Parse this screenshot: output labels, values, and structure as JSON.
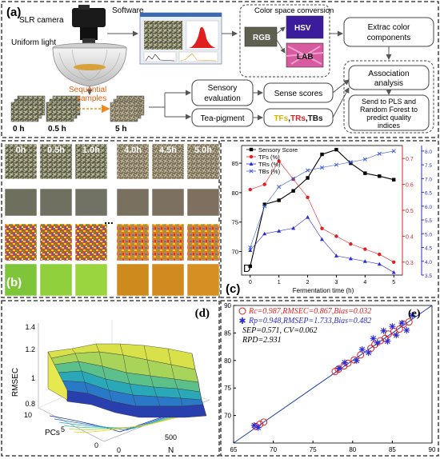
{
  "panel_a": {
    "label": "(a)",
    "camera": "SLR camera",
    "light": "Uniform light",
    "software": "Software",
    "color_space": "Color space conversion",
    "rgb": "RGB",
    "hsv": "HSV",
    "lab": "LAB",
    "extract": [
      "Extrac color",
      "components"
    ],
    "sequential": [
      "Sequential",
      "samples"
    ],
    "times": [
      "0 h",
      "0.5 h",
      "5 h"
    ],
    "sensory_eval": [
      "Sensory",
      "evaluation"
    ],
    "sense_scores": "Sense scores",
    "tea_pigment": "Tea-pigment",
    "pigments": [
      "TFs",
      ",",
      "TRs",
      ",",
      "TBs"
    ],
    "association": [
      "Association",
      "analysis"
    ],
    "send": [
      "Send to PLS and",
      "Random Forest to",
      "predict quality",
      "indices"
    ]
  },
  "panel_b": {
    "label": "(b)",
    "times": [
      "0h",
      "0.5h",
      "1.0h",
      "4.0h",
      "4.5h",
      "5.0h"
    ],
    "ellipsis": "..."
  },
  "panel_c": {
    "label": "(c)",
    "panel_letter": "D",
    "chart_data": {
      "type": "line",
      "xlabel": "Fermentation time (h)",
      "x": [
        0,
        0.5,
        1,
        1.5,
        2,
        2.5,
        3,
        3.5,
        4,
        4.5,
        5
      ],
      "xticks": [
        0,
        1,
        2,
        3,
        4,
        5
      ],
      "left_yticks": [
        70,
        75,
        80,
        85
      ],
      "left_ylim": [
        66,
        88
      ],
      "red_yticks": [
        0.3,
        0.4,
        0.5,
        0.6,
        0.7
      ],
      "red_ylim": [
        0.25,
        0.75
      ],
      "blue_yticks": [
        3.5,
        4.0,
        4.5,
        5.0,
        5.5,
        6.0,
        6.5,
        7.0,
        7.5,
        8.0
      ],
      "blue_ylim": [
        3.5,
        8.2
      ],
      "legend_position": "top-left",
      "series": [
        {
          "name": "Sensory Score",
          "color": "#000000",
          "axis": "left",
          "marker": "square",
          "values": [
            67.5,
            78.0,
            78.7,
            80.3,
            82.5,
            86.5,
            87.3,
            85.0,
            83.3,
            82.8,
            82.2
          ]
        },
        {
          "name": "TFs (%)",
          "color": "#e02020",
          "axis": "red",
          "marker": "circle",
          "values": [
            0.58,
            0.6,
            0.69,
            0.62,
            0.55,
            0.43,
            0.4,
            0.37,
            0.35,
            0.33,
            0.3
          ]
        },
        {
          "name": "TRs (%)",
          "color": "#2b2bd6",
          "axis": "blue",
          "marker": "triangle",
          "values": [
            4.4,
            5.0,
            5.1,
            5.2,
            5.6,
            4.8,
            4.2,
            4.1,
            4.0,
            3.9,
            3.6
          ]
        },
        {
          "name": "TBs (%)",
          "color": "#3b5bdb",
          "axis": "blue",
          "marker": "x",
          "values": [
            4.5,
            6.0,
            6.7,
            7.0,
            7.3,
            7.4,
            7.5,
            7.6,
            7.7,
            7.9,
            8.0
          ]
        }
      ]
    }
  },
  "panel_d": {
    "label": "(d)",
    "zlabel": "RMSEC",
    "ylabel": "PCs",
    "xlabel": "N",
    "zticks": [
      "0.8",
      "1",
      "1.2",
      "1.4"
    ],
    "yticks": [
      "0",
      "5",
      "10"
    ],
    "xticks": [
      "0",
      "500"
    ]
  },
  "panel_e": {
    "label": "(e)",
    "chart_data": {
      "type": "scatter",
      "xlim": [
        65,
        90
      ],
      "ylim": [
        65,
        90
      ],
      "xticks": [
        65,
        70,
        75,
        80,
        85,
        90
      ],
      "yticks": [
        70,
        75,
        80,
        85,
        90
      ],
      "annotations": [
        "Rc=0.987,RMSEC=0.867,Bias=0.032",
        "Rp=0.948,RMSEP=1.733,Bias=0.482",
        "SEP=0.571, CV=0.062",
        "RPD=2.931"
      ],
      "calibration": {
        "marker": "circle",
        "color": "#e02020",
        "x": [
          67.8,
          68.3,
          68.8,
          77.8,
          78.2,
          78.9,
          79.4,
          80.2,
          81.0,
          82.3,
          82.8,
          83.5,
          84.1,
          84.5,
          85.2,
          85.9,
          86.4,
          87.1
        ],
        "y": [
          68.0,
          68.4,
          68.8,
          78.0,
          78.4,
          79.0,
          79.5,
          80.1,
          81.0,
          82.2,
          82.9,
          83.6,
          84.0,
          84.8,
          85.3,
          85.7,
          86.6,
          87.0
        ]
      },
      "prediction": {
        "marker": "asterisk",
        "color": "#2b2bd6",
        "x": [
          67.6,
          68.1,
          78.3,
          79.0,
          80.5,
          81.2,
          82.0,
          82.6,
          83.1,
          83.9,
          84.4,
          85.0,
          85.5,
          86.2,
          86.8,
          87.5
        ],
        "y": [
          68.2,
          67.8,
          78.6,
          79.6,
          80.0,
          82.0,
          81.4,
          84.0,
          83.2,
          85.4,
          83.5,
          86.2,
          84.6,
          86.8,
          85.5,
          88.2
        ]
      }
    }
  }
}
